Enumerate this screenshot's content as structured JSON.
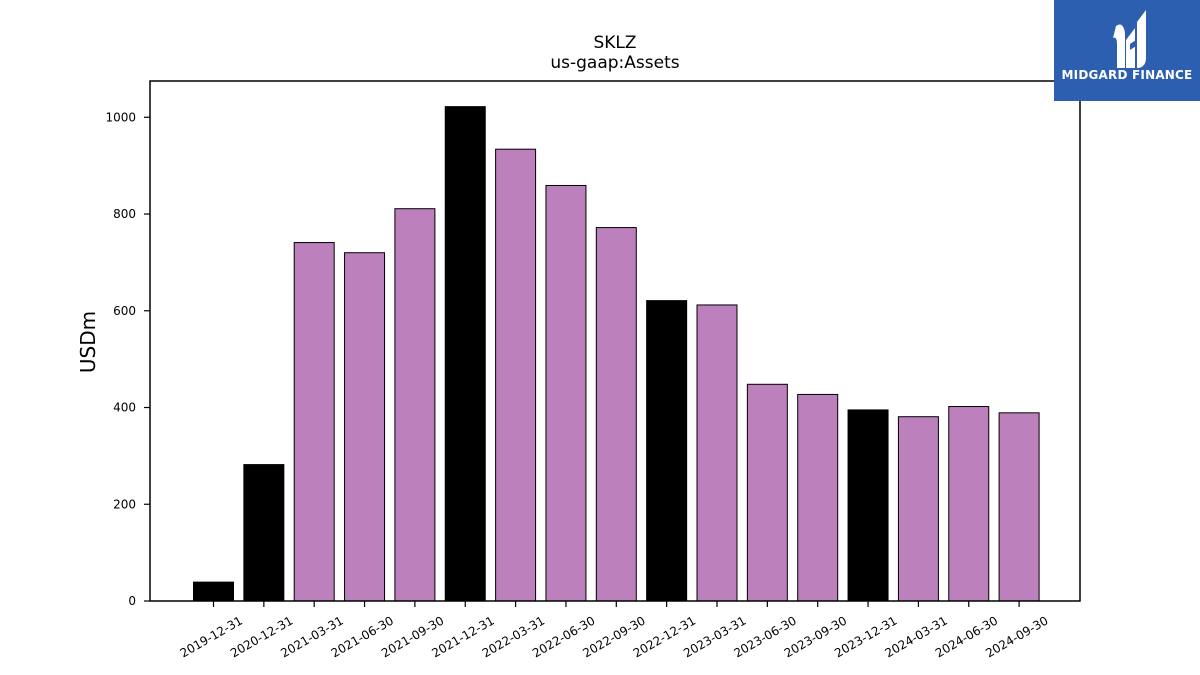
{
  "chart_data": {
    "type": "bar",
    "title": "SKLZ",
    "subtitle": "us-gaap:Assets",
    "xlabel": "",
    "ylabel": "USDm",
    "ylim": [
      0,
      1075
    ],
    "yticks": [
      0,
      200,
      400,
      600,
      800,
      1000
    ],
    "grid": false,
    "categories": [
      "2019-12-31",
      "2020-12-31",
      "2021-03-31",
      "2021-06-30",
      "2021-09-30",
      "2021-12-31",
      "2022-03-31",
      "2022-06-30",
      "2022-09-30",
      "2022-12-31",
      "2023-03-31",
      "2023-06-30",
      "2023-09-30",
      "2023-12-31",
      "2024-03-31",
      "2024-06-30",
      "2024-09-30"
    ],
    "values": [
      39,
      282,
      741,
      720,
      811,
      1022,
      934,
      859,
      772,
      621,
      612,
      448,
      427,
      395,
      381,
      402,
      389
    ],
    "bar_colors": [
      "#000000",
      "#000000",
      "#bc80bd",
      "#bc80bd",
      "#bc80bd",
      "#000000",
      "#bc80bd",
      "#bc80bd",
      "#bc80bd",
      "#000000",
      "#bc80bd",
      "#bc80bd",
      "#bc80bd",
      "#000000",
      "#bc80bd",
      "#bc80bd",
      "#bc80bd"
    ]
  },
  "logo": {
    "text": "MIDGARD FINANCE",
    "background_color": "#2d5fb0"
  }
}
